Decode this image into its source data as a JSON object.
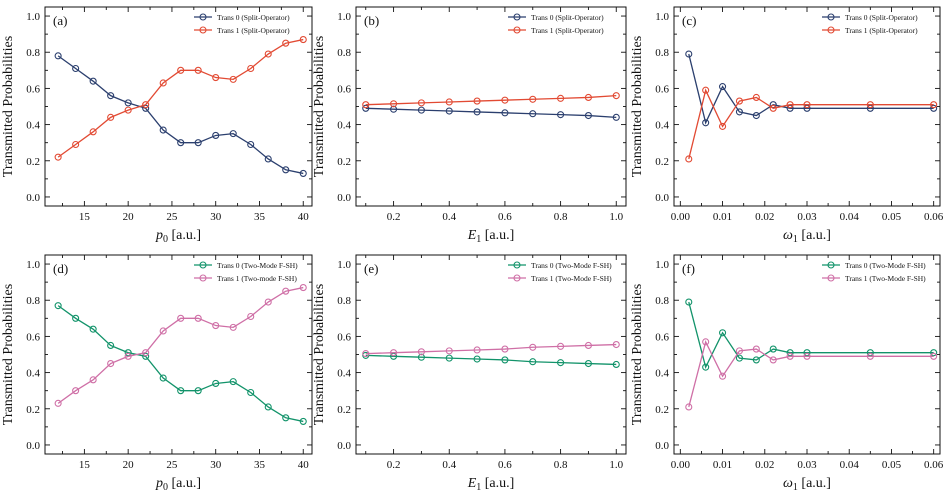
{
  "colors": {
    "split_trans0": "#2b3f6e",
    "split_trans1": "#e24a33",
    "fssh_trans0": "#12936a",
    "fssh_trans1": "#cf6fa6"
  },
  "chart_data": [
    {
      "type": "line",
      "panel_label": "(a)",
      "xlabel_var": "p",
      "xlabel_sub": "0",
      "xlabel_unit": " [a.u.]",
      "ylabel": "Transmitted Probabilities",
      "xlim": [
        10.5,
        41
      ],
      "ylim": [
        -0.05,
        1.05
      ],
      "xticks": [
        15,
        20,
        25,
        30,
        35,
        40
      ],
      "yticks": [
        0.0,
        0.2,
        0.4,
        0.6,
        0.8,
        1.0
      ],
      "ytick_labels": [
        "0.0",
        "0.2",
        "0.4",
        "0.6",
        "0.8",
        "1.0"
      ],
      "xtick_labels": [
        "15",
        "20",
        "25",
        "30",
        "35",
        "40"
      ],
      "legend_position": "top-right",
      "x": [
        12,
        14,
        16,
        18,
        20,
        22,
        24,
        26,
        28,
        30,
        32,
        34,
        36,
        38,
        40
      ],
      "series": [
        {
          "name": "Trans 0 (Split-Operator)",
          "color_key": "split_trans0",
          "values": [
            0.78,
            0.71,
            0.64,
            0.56,
            0.52,
            0.49,
            0.37,
            0.3,
            0.3,
            0.34,
            0.35,
            0.29,
            0.21,
            0.15,
            0.13
          ]
        },
        {
          "name": "Trans 1 (Split-Operator)",
          "color_key": "split_trans1",
          "values": [
            0.22,
            0.29,
            0.36,
            0.44,
            0.48,
            0.51,
            0.63,
            0.7,
            0.7,
            0.66,
            0.65,
            0.71,
            0.79,
            0.85,
            0.87
          ]
        }
      ]
    },
    {
      "type": "line",
      "panel_label": "(b)",
      "xlabel_var": "E",
      "xlabel_sub": "1",
      "xlabel_unit": " [a.u.]",
      "ylabel": "Transmitted Probabilities",
      "xlim": [
        0.065,
        1.035
      ],
      "ylim": [
        -0.05,
        1.05
      ],
      "xticks": [
        0.2,
        0.4,
        0.6,
        0.8,
        1.0
      ],
      "xtick_labels": [
        "0.2",
        "0.4",
        "0.6",
        "0.8",
        "1.0"
      ],
      "yticks": [
        0.0,
        0.2,
        0.4,
        0.6,
        0.8,
        1.0
      ],
      "ytick_labels": [
        "0.0",
        "0.2",
        "0.4",
        "0.6",
        "0.8",
        "1.0"
      ],
      "legend_position": "top-right",
      "x": [
        0.1,
        0.2,
        0.3,
        0.4,
        0.5,
        0.6,
        0.7,
        0.8,
        0.9,
        1.0
      ],
      "series": [
        {
          "name": "Trans 0 (Split-Operator)",
          "color_key": "split_trans0",
          "values": [
            0.49,
            0.485,
            0.48,
            0.475,
            0.47,
            0.465,
            0.46,
            0.455,
            0.45,
            0.44
          ]
        },
        {
          "name": "Trans 1 (Split-Operator)",
          "color_key": "split_trans1",
          "values": [
            0.51,
            0.515,
            0.52,
            0.525,
            0.53,
            0.535,
            0.54,
            0.545,
            0.55,
            0.56
          ]
        }
      ]
    },
    {
      "type": "line",
      "panel_label": "(c)",
      "xlabel_var": "ω",
      "xlabel_sub": "1",
      "xlabel_unit": " [a.u.]",
      "ylabel": "Transmitted Probabilities",
      "xlim": [
        -0.0015,
        0.0615
      ],
      "ylim": [
        -0.05,
        1.05
      ],
      "xticks": [
        0.0,
        0.01,
        0.02,
        0.03,
        0.04,
        0.05,
        0.06
      ],
      "xtick_labels": [
        "0.00",
        "0.01",
        "0.02",
        "0.03",
        "0.04",
        "0.05",
        "0.06"
      ],
      "yticks": [
        0.0,
        0.2,
        0.4,
        0.6,
        0.8,
        1.0
      ],
      "ytick_labels": [
        "0.0",
        "0.2",
        "0.4",
        "0.6",
        "0.8",
        "1.0"
      ],
      "legend_position": "top-right",
      "x": [
        0.002,
        0.006,
        0.01,
        0.014,
        0.018,
        0.022,
        0.026,
        0.03,
        0.045,
        0.06
      ],
      "series": [
        {
          "name": "Trans 0 (Split-Operator)",
          "color_key": "split_trans0",
          "values": [
            0.79,
            0.41,
            0.61,
            0.47,
            0.45,
            0.51,
            0.49,
            0.49,
            0.49,
            0.49
          ]
        },
        {
          "name": "Trans 1 (Split-Operator)",
          "color_key": "split_trans1",
          "values": [
            0.21,
            0.59,
            0.39,
            0.53,
            0.55,
            0.49,
            0.51,
            0.51,
            0.51,
            0.51
          ]
        }
      ]
    },
    {
      "type": "line",
      "panel_label": "(d)",
      "xlabel_var": "p",
      "xlabel_sub": "0",
      "xlabel_unit": " [a.u.]",
      "ylabel": "Transmitted Probabilities",
      "xlim": [
        10.5,
        41
      ],
      "ylim": [
        -0.05,
        1.05
      ],
      "xticks": [
        15,
        20,
        25,
        30,
        35,
        40
      ],
      "xtick_labels": [
        "15",
        "20",
        "25",
        "30",
        "35",
        "40"
      ],
      "yticks": [
        0.0,
        0.2,
        0.4,
        0.6,
        0.8,
        1.0
      ],
      "ytick_labels": [
        "0.0",
        "0.2",
        "0.4",
        "0.6",
        "0.8",
        "1.0"
      ],
      "legend_position": "top-right",
      "x": [
        12,
        14,
        16,
        18,
        20,
        22,
        24,
        26,
        28,
        30,
        32,
        34,
        36,
        38,
        40
      ],
      "series": [
        {
          "name": "Trans 0 (Two-Mode F-SH)",
          "color_key": "fssh_trans0",
          "values": [
            0.77,
            0.7,
            0.64,
            0.55,
            0.51,
            0.49,
            0.37,
            0.3,
            0.3,
            0.34,
            0.35,
            0.29,
            0.21,
            0.15,
            0.13
          ]
        },
        {
          "name": "Trans 1 (Two-mode F-SH)",
          "color_key": "fssh_trans1",
          "values": [
            0.23,
            0.3,
            0.36,
            0.45,
            0.49,
            0.51,
            0.63,
            0.7,
            0.7,
            0.66,
            0.65,
            0.71,
            0.79,
            0.85,
            0.87
          ]
        }
      ]
    },
    {
      "type": "line",
      "panel_label": "(e)",
      "xlabel_var": "E",
      "xlabel_sub": "1",
      "xlabel_unit": " [a.u.]",
      "ylabel": "Transmitted Probabilities",
      "xlim": [
        0.065,
        1.035
      ],
      "ylim": [
        -0.05,
        1.05
      ],
      "xticks": [
        0.2,
        0.4,
        0.6,
        0.8,
        1.0
      ],
      "xtick_labels": [
        "0.2",
        "0.4",
        "0.6",
        "0.8",
        "1.0"
      ],
      "yticks": [
        0.0,
        0.2,
        0.4,
        0.6,
        0.8,
        1.0
      ],
      "ytick_labels": [
        "0.0",
        "0.2",
        "0.4",
        "0.6",
        "0.8",
        "1.0"
      ],
      "legend_position": "top-right",
      "x": [
        0.1,
        0.2,
        0.3,
        0.4,
        0.5,
        0.6,
        0.7,
        0.8,
        0.9,
        1.0
      ],
      "series": [
        {
          "name": "Trans 0 (Two-Mode F-SH)",
          "color_key": "fssh_trans0",
          "values": [
            0.495,
            0.49,
            0.485,
            0.48,
            0.475,
            0.47,
            0.46,
            0.455,
            0.45,
            0.445
          ]
        },
        {
          "name": "Trans 1 (Two-Mode F-SH)",
          "color_key": "fssh_trans1",
          "values": [
            0.505,
            0.51,
            0.515,
            0.52,
            0.525,
            0.53,
            0.54,
            0.545,
            0.55,
            0.555
          ]
        }
      ]
    },
    {
      "type": "line",
      "panel_label": "(f)",
      "xlabel_var": "ω",
      "xlabel_sub": "1",
      "xlabel_unit": " [a.u.]",
      "ylabel": "Transmitted Probabilities",
      "xlim": [
        -0.0015,
        0.0615
      ],
      "ylim": [
        -0.05,
        1.05
      ],
      "xticks": [
        0.0,
        0.01,
        0.02,
        0.03,
        0.04,
        0.05,
        0.06
      ],
      "xtick_labels": [
        "0.00",
        "0.01",
        "0.02",
        "0.03",
        "0.04",
        "0.05",
        "0.06"
      ],
      "yticks": [
        0.0,
        0.2,
        0.4,
        0.6,
        0.8,
        1.0
      ],
      "ytick_labels": [
        "0.0",
        "0.2",
        "0.4",
        "0.6",
        "0.8",
        "1.0"
      ],
      "legend_position": "top-right",
      "x": [
        0.002,
        0.006,
        0.01,
        0.014,
        0.018,
        0.022,
        0.026,
        0.03,
        0.045,
        0.06
      ],
      "series": [
        {
          "name": "Trans 0 (Two-Mode F-SH)",
          "color_key": "fssh_trans0",
          "values": [
            0.79,
            0.43,
            0.62,
            0.48,
            0.47,
            0.53,
            0.51,
            0.51,
            0.51,
            0.51
          ]
        },
        {
          "name": "Trans 1 (Two-Mode F-SH)",
          "color_key": "fssh_trans1",
          "values": [
            0.21,
            0.57,
            0.38,
            0.52,
            0.53,
            0.47,
            0.49,
            0.49,
            0.49,
            0.49
          ]
        }
      ]
    }
  ]
}
